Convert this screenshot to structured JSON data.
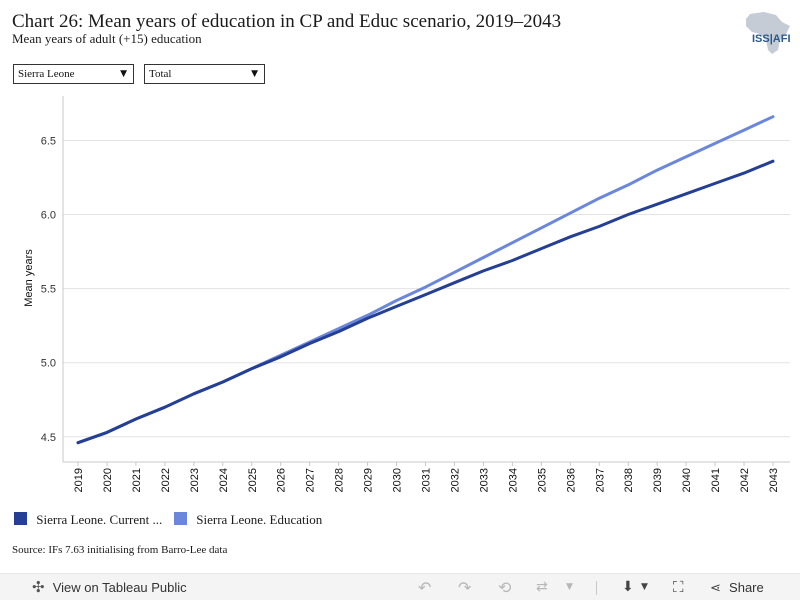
{
  "header": {
    "title": "Chart 26: Mean years of education in CP and Educ scenario, 2019–2043",
    "subtitle": "Mean years of adult (+15) education",
    "logo_text": "ISS|AFI"
  },
  "filters": {
    "country": "Sierra Leone",
    "measure": "Total"
  },
  "legend": [
    {
      "label": "Sierra Leone. Current ...",
      "color": "#253f94"
    },
    {
      "label": "Sierra Leone. Education",
      "color": "#6b87dc"
    }
  ],
  "source": "Source: IFs 7.63 initialising from Barro-Lee data",
  "toolbar": {
    "view_label": "View on Tableau Public",
    "share_label": "Share"
  },
  "chart_data": {
    "type": "line",
    "title": "Chart 26: Mean years of education in CP and Educ scenario, 2019–2043",
    "subtitle": "Mean years of adult (+15) education",
    "xlabel": "",
    "ylabel": "Mean years",
    "ylim": [
      4.33,
      6.8
    ],
    "yticks": [
      4.5,
      5.0,
      5.5,
      6.0,
      6.5
    ],
    "ytick_labels": [
      "4.5",
      "5.0",
      "5.5",
      "6.0",
      "6.5"
    ],
    "grid": true,
    "legend_position": "bottom-left",
    "x": [
      2019,
      2020,
      2021,
      2022,
      2023,
      2024,
      2025,
      2026,
      2027,
      2028,
      2029,
      2030,
      2031,
      2032,
      2033,
      2034,
      2035,
      2036,
      2037,
      2038,
      2039,
      2040,
      2041,
      2042,
      2043
    ],
    "series": [
      {
        "name": "Sierra Leone. Current ...",
        "color": "#253f94",
        "values": [
          4.46,
          4.53,
          4.62,
          4.7,
          4.79,
          4.87,
          4.96,
          5.04,
          5.13,
          5.21,
          5.3,
          5.38,
          5.46,
          5.54,
          5.62,
          5.69,
          5.77,
          5.85,
          5.92,
          6.0,
          6.07,
          6.14,
          6.21,
          6.28,
          6.36
        ]
      },
      {
        "name": "Sierra Leone. Education",
        "color": "#6b87dc",
        "values": [
          4.46,
          4.53,
          4.62,
          4.7,
          4.79,
          4.87,
          4.96,
          5.05,
          5.14,
          5.23,
          5.32,
          5.42,
          5.51,
          5.61,
          5.71,
          5.81,
          5.91,
          6.01,
          6.11,
          6.2,
          6.3,
          6.39,
          6.48,
          6.57,
          6.66
        ]
      }
    ]
  }
}
